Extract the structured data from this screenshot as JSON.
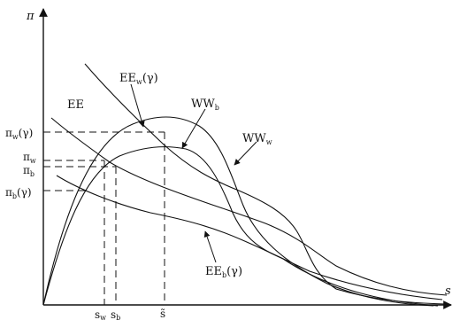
{
  "axes": {
    "y_label": "π",
    "x_label": "s"
  },
  "y_ticks": [
    {
      "base": "π",
      "sub": "w",
      "tail": "(γ)"
    },
    {
      "base": "π",
      "sub": "w",
      "tail": ""
    },
    {
      "base": "π",
      "sub": "b",
      "tail": ""
    },
    {
      "base": "π",
      "sub": "b",
      "tail": "(γ)"
    }
  ],
  "x_ticks": [
    {
      "base": "s",
      "sub": "w",
      "tail": ""
    },
    {
      "base": "s",
      "sub": "b",
      "tail": ""
    },
    {
      "base": "s̃",
      "sub": "",
      "tail": ""
    }
  ],
  "curves": [
    {
      "id": "EE",
      "base": "EE",
      "sub": "",
      "tail": ""
    },
    {
      "id": "EEw",
      "base": "EE",
      "sub": "w",
      "tail": "(γ)"
    },
    {
      "id": "WWb",
      "base": "WW",
      "sub": "b",
      "tail": ""
    },
    {
      "id": "WWw",
      "base": "WW",
      "sub": "w",
      "tail": ""
    },
    {
      "id": "EEb",
      "base": "EE",
      "sub": "b",
      "tail": "(γ)"
    }
  ],
  "colors": {
    "ink": "#111111",
    "background": "#ffffff"
  }
}
